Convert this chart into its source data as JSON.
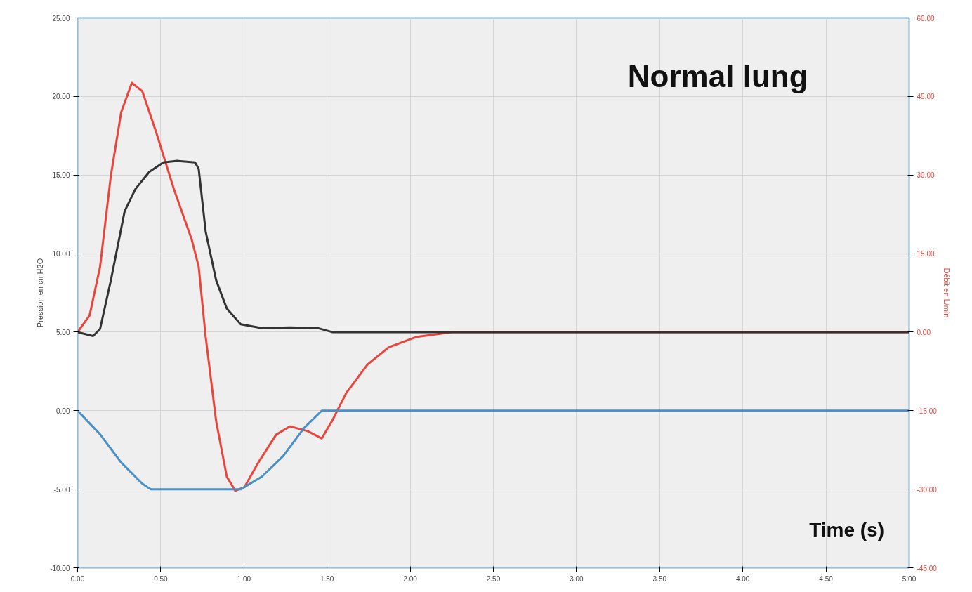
{
  "chart_data": {
    "type": "line",
    "title": "Normal lung",
    "xlabel": "Time (s)",
    "ylabel": "Pression en cmH2O",
    "y2label": "Débit en L/min",
    "xlim": [
      0,
      5
    ],
    "xticks": [
      {
        "value": 0,
        "label": "0.00"
      },
      {
        "value": 0.5,
        "label": "0.50"
      },
      {
        "value": 1,
        "label": "1.00"
      },
      {
        "value": 1.5,
        "label": "1.50"
      },
      {
        "value": 2,
        "label": "2.00"
      },
      {
        "value": 2.5,
        "label": "2.50"
      },
      {
        "value": 3,
        "label": "3.00"
      },
      {
        "value": 3.5,
        "label": "3.50"
      },
      {
        "value": 4,
        "label": "4.00"
      },
      {
        "value": 4.5,
        "label": "4.50"
      },
      {
        "value": 5,
        "label": "5.00"
      }
    ],
    "ylim": [
      -10,
      25
    ],
    "yticks": [
      {
        "value": -10,
        "label": "-10.00"
      },
      {
        "value": -5,
        "label": "-5.00"
      },
      {
        "value": 0,
        "label": "0.00"
      },
      {
        "value": 5,
        "label": "5.00"
      },
      {
        "value": 10,
        "label": "10.00"
      },
      {
        "value": 15,
        "label": "15.00"
      },
      {
        "value": 20,
        "label": "20.00"
      },
      {
        "value": 25,
        "label": "25.00"
      }
    ],
    "y2lim": [
      -45,
      60
    ],
    "y2ticks": [
      {
        "value": -45,
        "label": "-45.00"
      },
      {
        "value": -30,
        "label": "-30.00"
      },
      {
        "value": -15,
        "label": "-15.00"
      },
      {
        "value": 0,
        "label": "0.00"
      },
      {
        "value": 15,
        "label": "15.00"
      },
      {
        "value": 30,
        "label": "30.00"
      },
      {
        "value": 45,
        "label": "45.00"
      },
      {
        "value": 60,
        "label": "60.00"
      }
    ],
    "grid": true,
    "marker": "none",
    "line_style": "solid",
    "series": [
      {
        "color": "#e8453c",
        "axis": "y2",
        "x": [
          0,
          0.072,
          0.135,
          0.2,
          0.262,
          0.326,
          0.389,
          0.474,
          0.58,
          0.685,
          0.728,
          0.77,
          0.833,
          0.897,
          0.948,
          1.003,
          1.087,
          1.193,
          1.277,
          1.383,
          1.468,
          1.531,
          1.616,
          1.743,
          1.87,
          2.039,
          2.25,
          5
        ],
        "values": [
          0,
          3.2,
          12.5,
          29.9,
          42,
          47.6,
          46,
          38,
          27.2,
          17.8,
          12.5,
          -0.9,
          -17,
          -27.6,
          -30.3,
          -29.6,
          -24.9,
          -19.6,
          -18,
          -18.9,
          -20.3,
          -16.9,
          -11.6,
          -6.2,
          -2.9,
          -0.9,
          0,
          0
        ]
      },
      {
        "color": "#333333",
        "x": [
          0,
          0.093,
          0.135,
          0.2,
          0.283,
          0.347,
          0.431,
          0.516,
          0.6,
          0.706,
          0.728,
          0.77,
          0.833,
          0.897,
          0.981,
          1.108,
          1.277,
          1.447,
          1.531,
          2.039,
          5
        ],
        "values": [
          5,
          4.75,
          5.2,
          8.3,
          12.7,
          14.1,
          15.2,
          15.8,
          15.9,
          15.8,
          15.4,
          11.4,
          8.3,
          6.5,
          5.5,
          5.25,
          5.3,
          5.25,
          5,
          5,
          5
        ]
      },
      {
        "color": "#4a90c8",
        "x": [
          0,
          0.135,
          0.262,
          0.389,
          0.44,
          0.981,
          1.108,
          1.235,
          1.362,
          1.468,
          5
        ],
        "values": [
          0,
          -1.5,
          -3.3,
          -4.65,
          -5,
          -5,
          -4.2,
          -2.9,
          -1.1,
          0,
          0
        ]
      }
    ]
  }
}
